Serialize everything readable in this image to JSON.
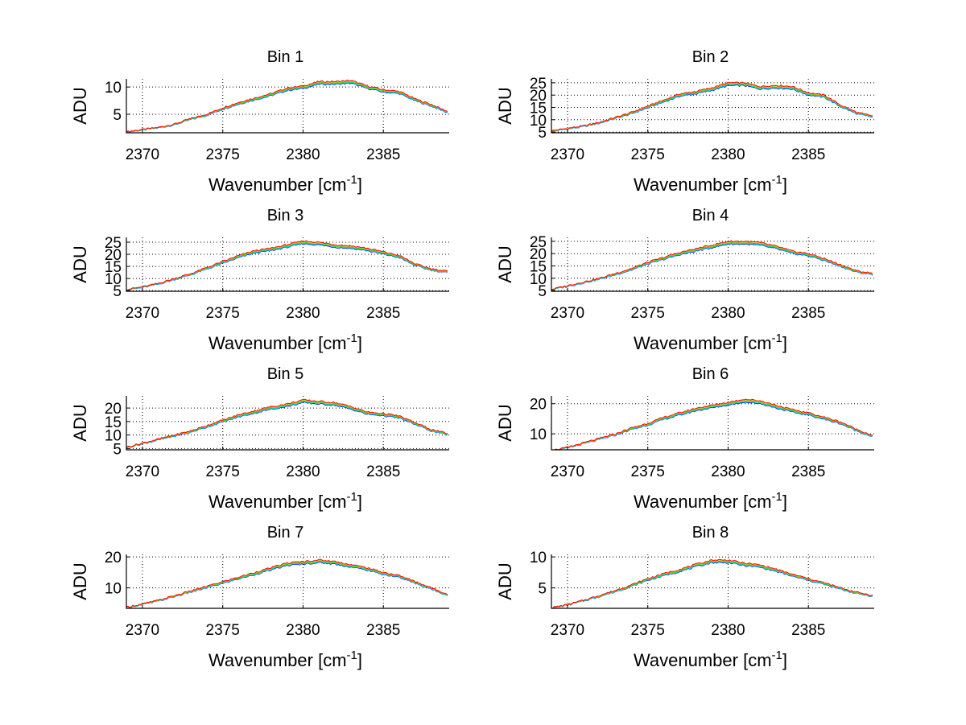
{
  "chart_data": {
    "type": "line",
    "layout": "4x2 subplots",
    "x": [
      2369,
      2370,
      2371,
      2372,
      2373,
      2374,
      2375,
      2376,
      2377,
      2378,
      2379,
      2380,
      2381,
      2382,
      2383,
      2384,
      2385,
      2386,
      2387,
      2388,
      2389
    ],
    "xlim": [
      2369,
      2389.1
    ],
    "xticks": [
      "2370",
      "2375",
      "2380",
      "2385"
    ],
    "xtick_values": [
      2370,
      2375,
      2380,
      2385
    ],
    "xlabel": {
      "text": "Wavenumber [cm",
      "superscript": "-1",
      "suffix": "]"
    },
    "ylabel": "ADU",
    "grid": true,
    "series_colors": [
      "#0000ff",
      "#00e5ff",
      "#33cc33",
      "#e6c800",
      "#ff0000"
    ],
    "series_scale": [
      0.955,
      0.965,
      0.975,
      0.99,
      1.0
    ],
    "subplots": [
      {
        "title": "Bin 1",
        "ylim": [
          1.6,
          11.5
        ],
        "yticks": [
          5,
          10
        ],
        "values": [
          1.8,
          2.2,
          2.6,
          3.2,
          4.2,
          5.0,
          6.2,
          7.2,
          8.0,
          8.8,
          9.8,
          10.2,
          11.0,
          11.0,
          11.2,
          10.2,
          9.5,
          9.2,
          7.8,
          6.8,
          5.5
        ]
      },
      {
        "title": "Bin 2",
        "ylim": [
          4.7,
          26.6
        ],
        "yticks": [
          5,
          10,
          15,
          20,
          25
        ],
        "values": [
          5.5,
          6.5,
          7.5,
          9,
          11,
          13,
          15.5,
          18,
          20.5,
          21.5,
          23,
          25,
          25,
          23.5,
          24,
          23.5,
          21,
          20,
          16,
          13,
          11.5
        ]
      },
      {
        "title": "Bin 3",
        "ylim": [
          4.7,
          27
        ],
        "yticks": [
          5,
          10,
          15,
          20,
          25
        ],
        "values": [
          5.5,
          6.5,
          8,
          10,
          12,
          14.5,
          17,
          19.5,
          21.5,
          22.5,
          24,
          25.5,
          25,
          24,
          23.5,
          22.5,
          21,
          19.5,
          16,
          14,
          13
        ]
      },
      {
        "title": "Bin 4",
        "ylim": [
          4.7,
          26.6
        ],
        "yticks": [
          5,
          10,
          15,
          20,
          25
        ],
        "values": [
          5.5,
          7,
          8.5,
          10,
          12,
          14,
          16.5,
          18.5,
          20.5,
          22,
          23.5,
          25,
          25,
          24.5,
          23,
          21,
          20,
          18,
          15.5,
          13,
          12
        ]
      },
      {
        "title": "Bin 5",
        "ylim": [
          4.5,
          24.5
        ],
        "yticks": [
          5,
          10,
          15,
          20
        ],
        "values": [
          5.5,
          7,
          8.5,
          10,
          11.5,
          13.5,
          15.5,
          17.5,
          19,
          20.5,
          21.5,
          23,
          22.5,
          22,
          20.5,
          18.5,
          18,
          17,
          14.5,
          12,
          10.5
        ]
      },
      {
        "title": "Bin 6",
        "ylim": [
          4.7,
          22.6
        ],
        "yticks": [
          10,
          20
        ],
        "values": [
          4.5,
          5.5,
          7,
          8.5,
          10,
          12,
          13.5,
          15.5,
          17,
          18.5,
          19.5,
          20.5,
          21.5,
          21,
          19.5,
          18,
          17,
          15.5,
          14,
          11.5,
          9.5
        ]
      },
      {
        "title": "Bin 7",
        "ylim": [
          3.4,
          20.8
        ],
        "yticks": [
          10,
          20
        ],
        "values": [
          3.8,
          4.8,
          6,
          7.5,
          9,
          10.5,
          12,
          13.5,
          15,
          16.5,
          18,
          18.5,
          19,
          18.5,
          17.5,
          16.5,
          15,
          14,
          12,
          10,
          8
        ]
      },
      {
        "title": "Bin 8",
        "ylim": [
          1.7,
          10.4
        ],
        "yticks": [
          5,
          10
        ],
        "values": [
          1.8,
          2.3,
          3,
          3.8,
          4.6,
          5.5,
          6.5,
          7.3,
          8,
          8.8,
          9.5,
          9.5,
          9,
          8.7,
          8,
          7.2,
          6.5,
          5.8,
          5,
          4.3,
          3.8
        ]
      }
    ]
  }
}
